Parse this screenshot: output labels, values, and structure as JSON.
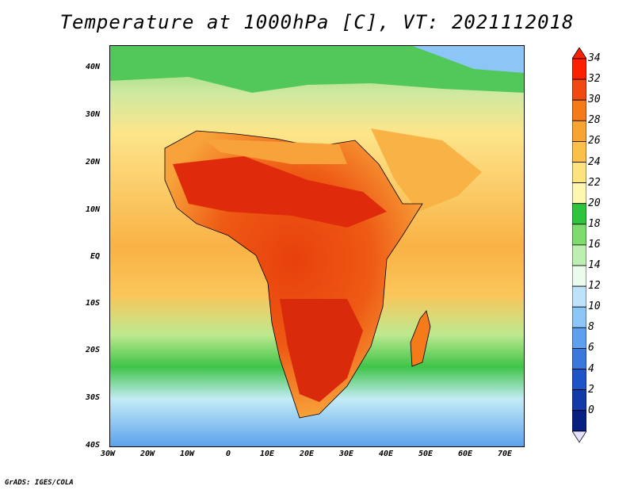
{
  "title": "Temperature at 1000hPa [C], VT: 2021112018",
  "credit": "GrADS: IGES/COLA",
  "axes": {
    "lat_labels": [
      "40N",
      "30N",
      "20N",
      "10N",
      "EQ",
      "10S",
      "20S",
      "30S",
      "40S"
    ],
    "lon_labels": [
      "30W",
      "20W",
      "10W",
      "0",
      "10E",
      "20E",
      "30E",
      "40E",
      "50E",
      "60E",
      "70E"
    ]
  },
  "colorbar": {
    "labels": [
      "34",
      "32",
      "30",
      "28",
      "26",
      "24",
      "22",
      "20",
      "18",
      "16",
      "14",
      "12",
      "10",
      "8",
      "6",
      "4",
      "2",
      "0"
    ],
    "colors": [
      "#ff2000",
      "#f04a12",
      "#f47a1a",
      "#f8a432",
      "#fbbf4a",
      "#fce37e",
      "#fdf7b0",
      "#2ec43c",
      "#7ddc6b",
      "#bdefb2",
      "#ebfbee",
      "#bfe2fb",
      "#8cc6f6",
      "#5ca0ee",
      "#3a78de",
      "#1f54c6",
      "#123aa8",
      "#0a1f82"
    ]
  }
}
